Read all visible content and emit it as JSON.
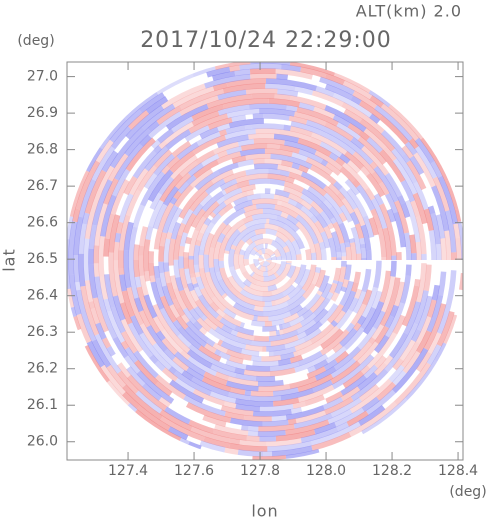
{
  "chart_data": {
    "type": "radar-ppi",
    "title": "2017/10/24 22:29:00",
    "subtitle": "ALT(km) 2.0",
    "xlabel": "lon",
    "ylabel": "lat",
    "xunit": "(deg)",
    "yunit": "(deg)",
    "xlim": [
      127.215,
      128.415
    ],
    "ylim": [
      25.95,
      27.04
    ],
    "xticks": [
      127.4,
      127.6,
      127.8,
      {
        "value": 128,
        "label": "128.0"
      },
      128.2,
      128.4
    ],
    "yticks": [
      {
        "value": 26,
        "label": "26.0"
      },
      26.1,
      26.2,
      26.3,
      26.4,
      26.5,
      26.6,
      26.7,
      26.8,
      26.9,
      {
        "value": 27,
        "label": "27.0"
      }
    ]
  }
}
